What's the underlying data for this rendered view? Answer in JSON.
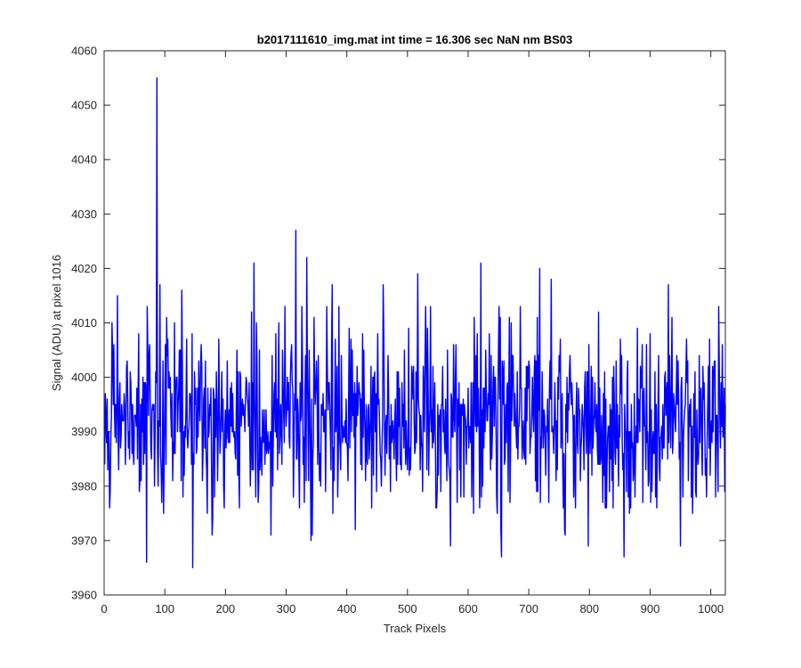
{
  "chart_data": {
    "type": "line",
    "title": "b2017111610_img.mat int time = 16.306 sec  NaN nm BS03",
    "xlabel": "Track Pixels",
    "ylabel": "Signal (ADU) at pixel 1016",
    "xlim": [
      0,
      1024
    ],
    "ylim": [
      3960,
      4060
    ],
    "xticks": [
      0,
      100,
      200,
      300,
      400,
      500,
      600,
      700,
      800,
      900,
      1000
    ],
    "yticks": [
      3960,
      3970,
      3980,
      3990,
      4000,
      4010,
      4020,
      4030,
      4040,
      4050,
      4060
    ],
    "grid": false,
    "series": [
      {
        "color": "#0000ff",
        "x_start": 1,
        "x_step": 1,
        "count": 1024,
        "baseline_mean": 3992,
        "std_dev": 8,
        "peaks": [
          {
            "x": 87,
            "y": 4055
          },
          {
            "x": 316,
            "y": 4027
          },
          {
            "x": 247,
            "y": 4021
          },
          {
            "x": 334,
            "y": 4022
          },
          {
            "x": 621,
            "y": 4021
          },
          {
            "x": 718,
            "y": 4020
          },
          {
            "x": 517,
            "y": 4019
          },
          {
            "x": 737,
            "y": 4018
          },
          {
            "x": 930,
            "y": 4017
          },
          {
            "x": 92,
            "y": 4017
          },
          {
            "x": 22,
            "y": 4015
          },
          {
            "x": 128,
            "y": 4016
          },
          {
            "x": 376,
            "y": 4017
          },
          {
            "x": 460,
            "y": 4017
          },
          {
            "x": 70,
            "y": 3966
          },
          {
            "x": 146,
            "y": 3965
          },
          {
            "x": 341,
            "y": 3970
          },
          {
            "x": 655,
            "y": 3967
          },
          {
            "x": 857,
            "y": 3967
          },
          {
            "x": 798,
            "y": 3969
          },
          {
            "x": 571,
            "y": 3969
          },
          {
            "x": 950,
            "y": 3969
          }
        ]
      }
    ]
  }
}
